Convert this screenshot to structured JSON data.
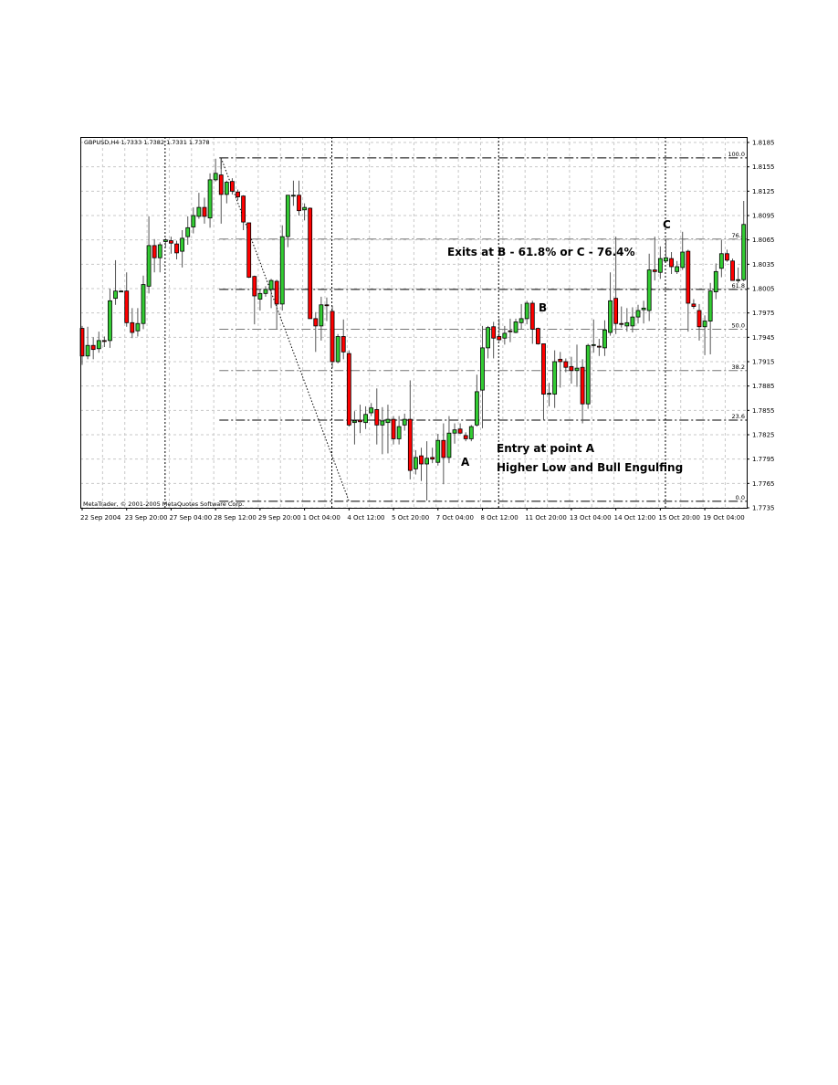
{
  "chart_data": {
    "type": "candlestick",
    "title": "GBPUSD,H4  1.7333 1.7382 1.7331 1.7378",
    "copyright": "MetaTrader, © 2001-2005 MetaQuotes Software Corp.",
    "ylim": [
      1.7735,
      1.8185
    ],
    "grid": true,
    "y_ticks": [
      "1.8185",
      "1.8155",
      "1.8125",
      "1.8095",
      "1.8065",
      "1.8035",
      "1.8005",
      "1.7975",
      "1.7945",
      "1.7915",
      "1.7885",
      "1.7855",
      "1.7825",
      "1.7795",
      "1.7765",
      "1.7735"
    ],
    "x_ticks": [
      "22 Sep 2004",
      "23 Sep 20:00",
      "27 Sep 04:00",
      "28 Sep 12:00",
      "29 Sep 20:00",
      "1 Oct 04:00",
      "4 Oct 12:00",
      "5 Oct 20:00",
      "7 Oct 04:00",
      "8 Oct 12:00",
      "11 Oct 20:00",
      "13 Oct 04:00",
      "14 Oct 12:00",
      "15 Oct 20:00",
      "19 Oct 04:00"
    ],
    "colors": {
      "bull": "#33CC33",
      "bear": "#FF0000",
      "outline": "#000000",
      "wick": "#555555",
      "grid": "#C8C8C8"
    },
    "candles_ohlc": [
      [
        1.7956,
        1.7959,
        1.7911,
        1.7922
      ],
      [
        1.7922,
        1.7958,
        1.7918,
        1.7935
      ],
      [
        1.7935,
        1.7945,
        1.7918,
        1.793
      ],
      [
        1.7931,
        1.7952,
        1.7926,
        1.7941
      ],
      [
        1.7941,
        1.7946,
        1.7933,
        1.794
      ],
      [
        1.7941,
        1.8005,
        1.7932,
        1.799
      ],
      [
        1.7993,
        1.804,
        1.7985,
        1.8002
      ],
      [
        1.8002,
        1.8003,
        1.8001,
        1.8002
      ],
      [
        1.8002,
        1.8025,
        1.7958,
        1.7963
      ],
      [
        1.7963,
        1.7981,
        1.7944,
        1.7951
      ],
      [
        1.7953,
        1.7981,
        1.7946,
        1.7962
      ],
      [
        1.7962,
        1.8021,
        1.7955,
        1.801
      ],
      [
        1.8008,
        1.8094,
        1.7999,
        1.8058
      ],
      [
        1.8058,
        1.8066,
        1.8025,
        1.8043
      ],
      [
        1.8043,
        1.8062,
        1.8025,
        1.8059
      ],
      [
        1.8063,
        1.8067,
        1.8055,
        1.8065
      ],
      [
        1.8064,
        1.8069,
        1.8048,
        1.8061
      ],
      [
        1.806,
        1.8064,
        1.8041,
        1.8049
      ],
      [
        1.8051,
        1.8077,
        1.8031,
        1.8067
      ],
      [
        1.8069,
        1.8094,
        1.8059,
        1.808
      ],
      [
        1.8081,
        1.8105,
        1.8073,
        1.8095
      ],
      [
        1.8094,
        1.8123,
        1.8091,
        1.8105
      ],
      [
        1.8105,
        1.8117,
        1.8085,
        1.8094
      ],
      [
        1.8092,
        1.8147,
        1.808,
        1.8139
      ],
      [
        1.8139,
        1.8165,
        1.8137,
        1.8147
      ],
      [
        1.8145,
        1.8166,
        1.8085,
        1.8121
      ],
      [
        1.8121,
        1.8138,
        1.811,
        1.8136
      ],
      [
        1.8137,
        1.8141,
        1.8121,
        1.8125
      ],
      [
        1.8124,
        1.8127,
        1.8114,
        1.8118
      ],
      [
        1.8119,
        1.812,
        1.8077,
        1.8087
      ],
      [
        1.8086,
        1.8086,
        1.8018,
        1.8019
      ],
      [
        1.802,
        1.8021,
        1.7961,
        1.7996
      ],
      [
        1.7992,
        1.8004,
        1.7978,
        1.7999
      ],
      [
        1.7999,
        1.8008,
        1.7995,
        1.8004
      ],
      [
        1.8004,
        1.8017,
        1.7981,
        1.8015
      ],
      [
        1.8014,
        1.8016,
        1.7955,
        1.7986
      ],
      [
        1.7986,
        1.8083,
        1.7978,
        1.8069
      ],
      [
        1.8069,
        1.812,
        1.8056,
        1.812
      ],
      [
        1.812,
        1.8138,
        1.8107,
        1.812
      ],
      [
        1.812,
        1.8138,
        1.8095,
        1.8101
      ],
      [
        1.8102,
        1.811,
        1.8089,
        1.8105
      ],
      [
        1.8104,
        1.8105,
        1.7968,
        1.7968
      ],
      [
        1.7968,
        1.7976,
        1.7927,
        1.7959
      ],
      [
        1.7959,
        1.7995,
        1.7941,
        1.7985
      ],
      [
        1.7985,
        1.7994,
        1.7965,
        1.7984
      ],
      [
        1.7977,
        1.7984,
        1.7907,
        1.7915
      ],
      [
        1.7915,
        1.7949,
        1.7913,
        1.7946
      ],
      [
        1.7946,
        1.7967,
        1.7918,
        1.7927
      ],
      [
        1.7925,
        1.7929,
        1.7835,
        1.7837
      ],
      [
        1.784,
        1.7854,
        1.7813,
        1.7842
      ],
      [
        1.7843,
        1.7862,
        1.7827,
        1.7841
      ],
      [
        1.784,
        1.786,
        1.7832,
        1.785
      ],
      [
        1.7852,
        1.7864,
        1.7848,
        1.7858
      ],
      [
        1.7856,
        1.7882,
        1.7813,
        1.7837
      ],
      [
        1.7837,
        1.7859,
        1.7801,
        1.7842
      ],
      [
        1.784,
        1.7862,
        1.7802,
        1.7844
      ],
      [
        1.7844,
        1.7848,
        1.7813,
        1.782
      ],
      [
        1.782,
        1.7848,
        1.7813,
        1.7835
      ],
      [
        1.7837,
        1.7851,
        1.783,
        1.7844
      ],
      [
        1.7844,
        1.7892,
        1.777,
        1.7781
      ],
      [
        1.7783,
        1.7806,
        1.7776,
        1.7797
      ],
      [
        1.7799,
        1.7809,
        1.7768,
        1.7789
      ],
      [
        1.7789,
        1.7817,
        1.7744,
        1.7796
      ],
      [
        1.7797,
        1.7809,
        1.779,
        1.7795
      ],
      [
        1.7791,
        1.7826,
        1.7787,
        1.7818
      ],
      [
        1.7818,
        1.7839,
        1.7764,
        1.7797
      ],
      [
        1.7797,
        1.7848,
        1.779,
        1.7827
      ],
      [
        1.7827,
        1.7839,
        1.7814,
        1.7831
      ],
      [
        1.7832,
        1.7839,
        1.7826,
        1.7827
      ],
      [
        1.7824,
        1.7828,
        1.7817,
        1.782
      ],
      [
        1.782,
        1.7837,
        1.7817,
        1.7835
      ],
      [
        1.7837,
        1.7899,
        1.7835,
        1.7878
      ],
      [
        1.788,
        1.7959,
        1.7833,
        1.7932
      ],
      [
        1.7932,
        1.7959,
        1.7919,
        1.7957
      ],
      [
        1.7958,
        1.7964,
        1.7919,
        1.7944
      ],
      [
        1.7946,
        1.7968,
        1.794,
        1.7942
      ],
      [
        1.7944,
        1.7959,
        1.7936,
        1.795
      ],
      [
        1.7953,
        1.7968,
        1.7939,
        1.7952
      ],
      [
        1.7951,
        1.7968,
        1.795,
        1.7964
      ],
      [
        1.7963,
        1.7986,
        1.7955,
        1.7968
      ],
      [
        1.7968,
        1.799,
        1.7961,
        1.7987
      ],
      [
        1.7987,
        1.799,
        1.7937,
        1.7955
      ],
      [
        1.7956,
        1.7957,
        1.7936,
        1.7937
      ],
      [
        1.7937,
        1.7937,
        1.7843,
        1.7875
      ],
      [
        1.7875,
        1.7889,
        1.786,
        1.7876
      ],
      [
        1.7875,
        1.7929,
        1.7858,
        1.7915
      ],
      [
        1.7918,
        1.7927,
        1.7883,
        1.7915
      ],
      [
        1.7915,
        1.7919,
        1.7902,
        1.7908
      ],
      [
        1.7909,
        1.7921,
        1.7888,
        1.7904
      ],
      [
        1.7904,
        1.7936,
        1.7884,
        1.7907
      ],
      [
        1.7908,
        1.7918,
        1.7839,
        1.7863
      ],
      [
        1.7863,
        1.7937,
        1.7857,
        1.7935
      ],
      [
        1.7935,
        1.7967,
        1.7926,
        1.7936
      ],
      [
        1.7934,
        1.7943,
        1.7922,
        1.7933
      ],
      [
        1.7932,
        1.7966,
        1.7922,
        1.7954
      ],
      [
        1.7951,
        1.8025,
        1.7947,
        1.799
      ],
      [
        1.7993,
        1.8069,
        1.7949,
        1.7962
      ],
      [
        1.7962,
        1.7983,
        1.7957,
        1.7961
      ],
      [
        1.7959,
        1.7981,
        1.7952,
        1.7963
      ],
      [
        1.7959,
        1.7982,
        1.7951,
        1.797
      ],
      [
        1.797,
        1.7985,
        1.7962,
        1.7978
      ],
      [
        1.7979,
        1.799,
        1.7962,
        1.7981
      ],
      [
        1.7978,
        1.8048,
        1.7965,
        1.8028
      ],
      [
        1.8028,
        1.8069,
        1.8015,
        1.8026
      ],
      [
        1.8025,
        1.8057,
        1.8017,
        1.8042
      ],
      [
        1.8039,
        1.8065,
        1.8037,
        1.8043
      ],
      [
        1.8042,
        1.805,
        1.8023,
        1.8032
      ],
      [
        1.8026,
        1.8039,
        1.8023,
        1.8032
      ],
      [
        1.8031,
        1.8075,
        1.8028,
        1.805
      ],
      [
        1.8051,
        1.8053,
        1.7952,
        1.7987
      ],
      [
        1.7986,
        1.7992,
        1.798,
        1.7983
      ],
      [
        1.7978,
        1.7986,
        1.7941,
        1.7958
      ],
      [
        1.7958,
        1.7972,
        1.7923,
        1.7965
      ],
      [
        1.7965,
        1.8012,
        1.7924,
        1.8002
      ],
      [
        1.8001,
        1.8036,
        1.7992,
        1.8026
      ],
      [
        1.803,
        1.8065,
        1.8019,
        1.8048
      ],
      [
        1.8048,
        1.8053,
        1.8038,
        1.804
      ],
      [
        1.8039,
        1.8042,
        1.8015,
        1.8015
      ],
      [
        1.8015,
        1.8031,
        1.8012,
        1.8016
      ],
      [
        1.8016,
        1.8113,
        1.8014,
        1.8084
      ]
    ],
    "fibonacci": {
      "high": 1.8166,
      "low": 1.7743,
      "levels": [
        {
          "label": "100.0",
          "price": 1.8166
        },
        {
          "label": "76.4",
          "price": 1.8066
        },
        {
          "label": "61.8",
          "price": 1.8004
        },
        {
          "label": "50.0",
          "price": 1.7955
        },
        {
          "label": "38.2",
          "price": 1.7904
        },
        {
          "label": "23.6",
          "price": 1.7843
        },
        {
          "label": "0.0",
          "price": 1.7743
        }
      ]
    },
    "annotations": {
      "exits": "Exits at B - 61.8% or C - 76.4%",
      "point_b": "B",
      "point_c": "C",
      "point_a": "A",
      "entry": "Entry at point A",
      "pattern": "Higher Low and Bull Engulfing"
    }
  }
}
